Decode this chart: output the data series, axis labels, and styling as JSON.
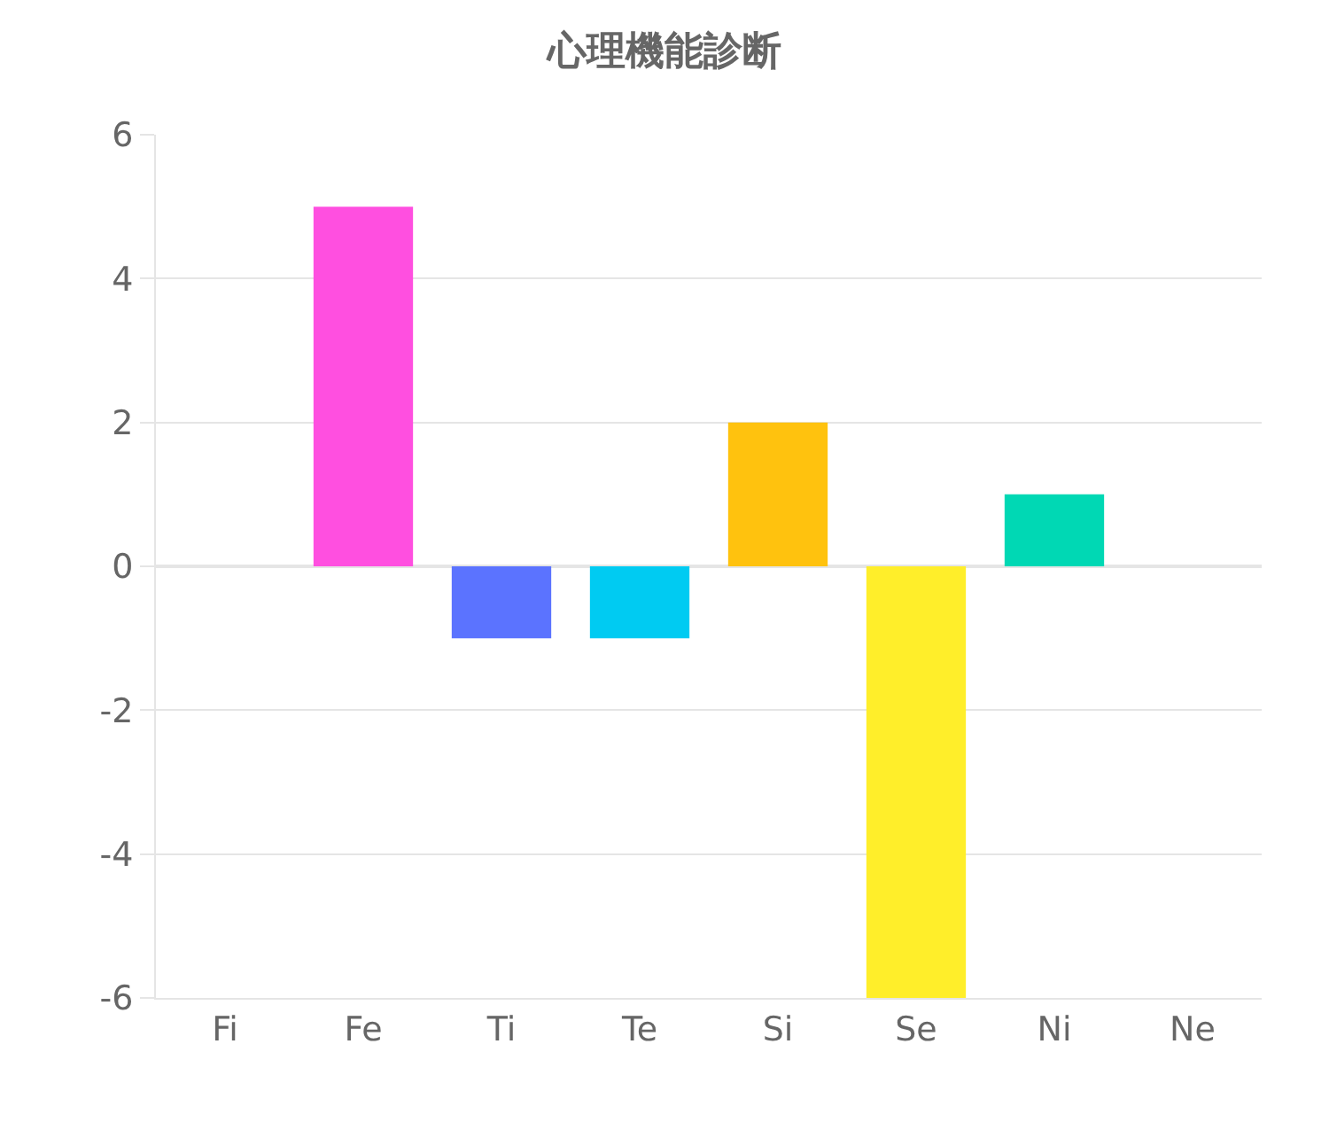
{
  "chart_data": {
    "type": "bar",
    "title": "心理機能診断",
    "categories": [
      "Fi",
      "Fe",
      "Ti",
      "Te",
      "Si",
      "Se",
      "Ni",
      "Ne"
    ],
    "values": [
      0,
      5,
      -1,
      -1,
      2,
      -6,
      1,
      0
    ],
    "colors": [
      "#ff6384",
      "#ff4fe0",
      "#5b73ff",
      "#00cbf2",
      "#ffc20e",
      "#ffee2a",
      "#00d8b4",
      "#9966ff"
    ],
    "ylim": [
      -6,
      6
    ],
    "yticks": [
      -6,
      -4,
      -2,
      0,
      2,
      4,
      6
    ],
    "grid": "y"
  }
}
